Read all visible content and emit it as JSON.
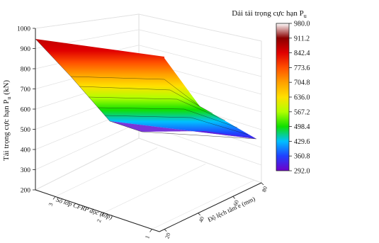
{
  "chart_data": {
    "type": "surface",
    "legend_title": "Dải tải trọng cực hạn P",
    "legend_title_sub": "u",
    "zlabel": "Tải trọng cực hạn P",
    "zlabel_sub": "u",
    "zlabel_unit": " (kN)",
    "xlabel": "Số lớp CFRP dọc (lớp)",
    "ylabel": "Độ lệch tâm e (mm)",
    "zlim": [
      200,
      1000
    ],
    "z_ticks": [
      "200",
      "300",
      "400",
      "500",
      "600",
      "700",
      "800",
      "900",
      "1000"
    ],
    "x_ticks": [
      "1",
      "2",
      "3"
    ],
    "y_ticks": [
      "20",
      "40",
      "60",
      "80"
    ],
    "colorbar_levels": [
      "980.0",
      "911.2",
      "842.4",
      "773.6",
      "704.8",
      "636.0",
      "567.2",
      "498.4",
      "429.6",
      "360.8",
      "292.0"
    ],
    "colorbar_colors": [
      "#ffffff",
      "#8b0000",
      "#e00000",
      "#ff5000",
      "#ffa000",
      "#ffe000",
      "#b0ff00",
      "#10e000",
      "#00c0ff",
      "#2040ff",
      "#7000c8"
    ],
    "surface_points": [
      {
        "layers": 3,
        "ecc": 20,
        "load": 975
      },
      {
        "layers": 1,
        "ecc": 20,
        "load": 895
      },
      {
        "layers": 3,
        "ecc": 40,
        "load": 640
      },
      {
        "layers": 2,
        "ecc": 40,
        "load": 530
      },
      {
        "layers": 1,
        "ecc": 40,
        "load": 515
      },
      {
        "layers": 1,
        "ecc": 80,
        "load": 470
      }
    ]
  }
}
